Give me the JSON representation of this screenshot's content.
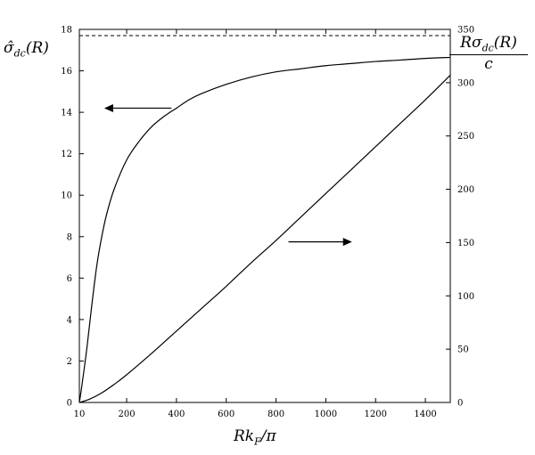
{
  "chart_data": {
    "type": "line",
    "xlabel": "Rk_F/π",
    "ylabel_left": "σ̂_dc(R)",
    "ylabel_right_numerator": "Rσ_dc(R)",
    "ylabel_right_denominator": "c",
    "xlim": [
      10,
      1500
    ],
    "ylim_left": [
      0,
      18
    ],
    "ylim_right": [
      0,
      350
    ],
    "x_ticks": [
      "10",
      "200",
      "400",
      "600",
      "800",
      "1000",
      "1200",
      "1400"
    ],
    "y_ticks_left": [
      "0",
      "2",
      "4",
      "6",
      "8",
      "10",
      "12",
      "14",
      "16",
      "18"
    ],
    "y_ticks_right": [
      "0",
      "50",
      "100",
      "150",
      "200",
      "250",
      "300",
      "350"
    ],
    "asymptote_left": 17.7,
    "series": [
      {
        "axis": "left",
        "style": "solid",
        "x": [
          10,
          20,
          40,
          60,
          80,
          100,
          120,
          150,
          200,
          250,
          300,
          350,
          400,
          450,
          500,
          600,
          700,
          800,
          900,
          1000,
          1100,
          1200,
          1300,
          1400,
          1500
        ],
        "y": [
          0,
          0.8,
          2.6,
          4.7,
          6.6,
          8.0,
          9.1,
          10.3,
          11.7,
          12.6,
          13.3,
          13.8,
          14.2,
          14.6,
          14.9,
          15.35,
          15.7,
          15.95,
          16.1,
          16.25,
          16.35,
          16.45,
          16.52,
          16.6,
          16.65
        ]
      },
      {
        "axis": "right",
        "style": "solid",
        "x": [
          10,
          50,
          100,
          150,
          200,
          300,
          400,
          500,
          600,
          700,
          800,
          900,
          1000,
          1100,
          1200,
          1300,
          1400,
          1500
        ],
        "y": [
          0,
          3,
          9,
          17,
          26,
          46,
          67,
          88,
          109,
          131,
          152,
          174,
          196,
          218,
          240,
          262,
          284,
          307
        ]
      }
    ],
    "annotations": [
      {
        "type": "arrow",
        "direction": "left",
        "points_to": "left axis",
        "x_start": 380,
        "x_end": 110,
        "y_left": 14.2
      },
      {
        "type": "arrow",
        "direction": "right",
        "points_to": "right axis",
        "x_start": 850,
        "x_end": 1105,
        "y_left": 7.75
      }
    ]
  }
}
